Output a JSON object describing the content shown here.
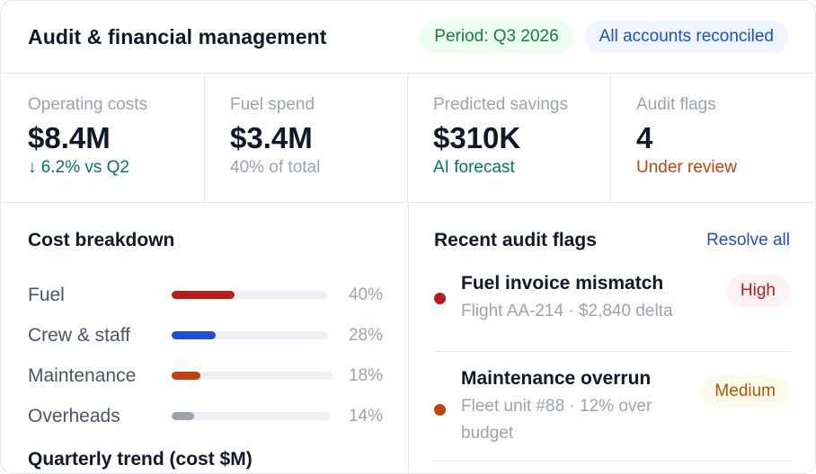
{
  "header": {
    "title": "Audit & financial management",
    "period_badge": "Period: Q3 2026",
    "status_badge": "All accounts reconciled"
  },
  "kpis": [
    {
      "label": "Operating costs",
      "value": "$8.4M",
      "note": "↓ 6.2% vs Q2",
      "note_color": "#047857"
    },
    {
      "label": "Fuel spend",
      "value": "$3.4M",
      "note": "40% of total",
      "note_color": "#9ca3af"
    },
    {
      "label": "Predicted savings",
      "value": "$310K",
      "note": "AI forecast",
      "note_color": "#047857"
    },
    {
      "label": "Audit flags",
      "value": "4",
      "note": "Under review",
      "note_color": "#c2410c"
    }
  ],
  "breakdown": {
    "title": "Cost breakdown",
    "items": [
      {
        "label": "Fuel",
        "pct": "40%",
        "fill_fraction": 0.4,
        "color": "#b91c1c"
      },
      {
        "label": "Crew & staff",
        "pct": "28%",
        "fill_fraction": 0.28,
        "color": "#1d4ed8"
      },
      {
        "label": "Maintenance",
        "pct": "18%",
        "fill_fraction": 0.18,
        "color": "#c2410c"
      },
      {
        "label": "Overheads",
        "pct": "14%",
        "fill_fraction": 0.14,
        "color": "#9ca3af"
      }
    ]
  },
  "trend": {
    "title": "Quarterly trend (cost $M)"
  },
  "flags": {
    "title": "Recent audit flags",
    "action": "Resolve all",
    "items": [
      {
        "title": "Fuel invoice mismatch",
        "meta": "Flight AA-214 · $2,840 delta",
        "severity": "High",
        "dot_color": "#b91c1c"
      },
      {
        "title": "Maintenance overrun",
        "meta": "Fleet unit #88 · 12% over budget",
        "severity": "Medium",
        "dot_color": "#c2410c"
      }
    ]
  }
}
